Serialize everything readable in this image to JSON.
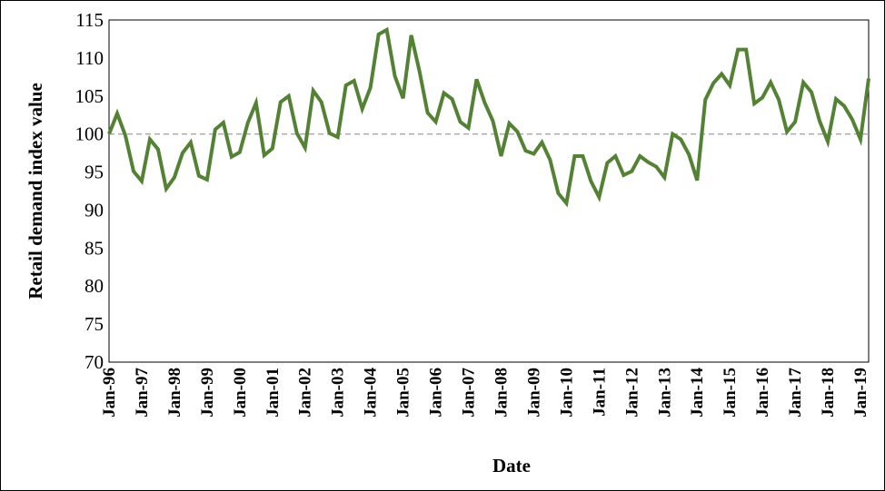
{
  "chart_data": {
    "type": "line",
    "xlabel": "Date",
    "ylabel": "Retail demand index value",
    "ylim": [
      70,
      115
    ],
    "yticks": [
      70,
      75,
      80,
      85,
      90,
      95,
      100,
      105,
      110,
      115
    ],
    "x_tick_labels": [
      "Jan-96",
      "Jan-97",
      "Jan-98",
      "Jan-99",
      "Jan-00",
      "Jan-01",
      "Jan-02",
      "Jan-03",
      "Jan-04",
      "Jan-05",
      "Jan-06",
      "Jan-07",
      "Jan-08",
      "Jan-09",
      "Jan-10",
      "Jan-11",
      "Jan-12",
      "Jan-13",
      "Jan-14",
      "Jan-15",
      "Jan-16",
      "Jan-17",
      "Jan-18",
      "Jan-19"
    ],
    "frequency": "quarterly",
    "reference_line": {
      "y": 100,
      "style": "dashed",
      "color": "#a6a6a6"
    },
    "grid": false,
    "legend": "none",
    "series": [
      {
        "color": "#548235",
        "x": [
          "Jan-96",
          "Apr-96",
          "Jul-96",
          "Oct-96",
          "Jan-97",
          "Apr-97",
          "Jul-97",
          "Oct-97",
          "Jan-98",
          "Apr-98",
          "Jul-98",
          "Oct-98",
          "Jan-99",
          "Apr-99",
          "Jul-99",
          "Oct-99",
          "Jan-00",
          "Apr-00",
          "Jul-00",
          "Oct-00",
          "Jan-01",
          "Apr-01",
          "Jul-01",
          "Oct-01",
          "Jan-02",
          "Apr-02",
          "Jul-02",
          "Oct-02",
          "Jan-03",
          "Apr-03",
          "Jul-03",
          "Oct-03",
          "Jan-04",
          "Apr-04",
          "Jul-04",
          "Oct-04",
          "Jan-05",
          "Apr-05",
          "Jul-05",
          "Oct-05",
          "Jan-06",
          "Apr-06",
          "Jul-06",
          "Oct-06",
          "Jan-07",
          "Apr-07",
          "Jul-07",
          "Oct-07",
          "Jan-08",
          "Apr-08",
          "Jul-08",
          "Oct-08",
          "Jan-09",
          "Apr-09",
          "Jul-09",
          "Oct-09",
          "Jan-10",
          "Apr-10",
          "Jul-10",
          "Oct-10",
          "Jan-11",
          "Apr-11",
          "Jul-11",
          "Oct-11",
          "Jan-12",
          "Apr-12",
          "Jul-12",
          "Oct-12",
          "Jan-13",
          "Apr-13",
          "Jul-13",
          "Oct-13",
          "Jan-14",
          "Apr-14",
          "Jul-14",
          "Oct-14",
          "Jan-15",
          "Apr-15",
          "Jul-15",
          "Oct-15",
          "Jan-16",
          "Apr-16",
          "Jul-16",
          "Oct-16",
          "Jan-17",
          "Apr-17",
          "Jul-17",
          "Oct-17",
          "Jan-18",
          "Apr-18",
          "Jul-18",
          "Oct-18",
          "Jan-19",
          "Apr-19"
        ],
        "values": [
          100.0,
          102.7,
          99.8,
          95.1,
          93.8,
          99.3,
          98.0,
          92.8,
          94.3,
          97.5,
          98.9,
          94.5,
          94.0,
          100.6,
          101.5,
          97.0,
          97.6,
          101.5,
          104.1,
          97.2,
          98.1,
          104.2,
          105.0,
          100.1,
          98.2,
          105.7,
          104.2,
          100.1,
          99.6,
          106.4,
          107.0,
          103.3,
          106.1,
          113.1,
          113.7,
          107.6,
          104.7,
          113.0,
          108.3,
          102.8,
          101.6,
          105.4,
          104.6,
          101.6,
          100.8,
          107.2,
          104.1,
          101.7,
          97.1,
          101.4,
          100.3,
          97.8,
          97.4,
          98.9,
          96.6,
          92.2,
          90.9,
          97.1,
          97.1,
          93.8,
          91.7,
          96.2,
          97.1,
          94.6,
          95.1,
          97.1,
          96.3,
          95.7,
          94.3,
          100.0,
          99.3,
          97.3,
          93.9,
          104.5,
          106.7,
          107.9,
          106.4,
          111.1,
          111.1,
          104.0,
          104.8,
          106.8,
          104.5,
          100.3,
          101.6,
          106.8,
          105.5,
          101.7,
          99.0,
          104.6,
          103.7,
          101.9,
          99.3,
          107.3
        ]
      }
    ]
  }
}
